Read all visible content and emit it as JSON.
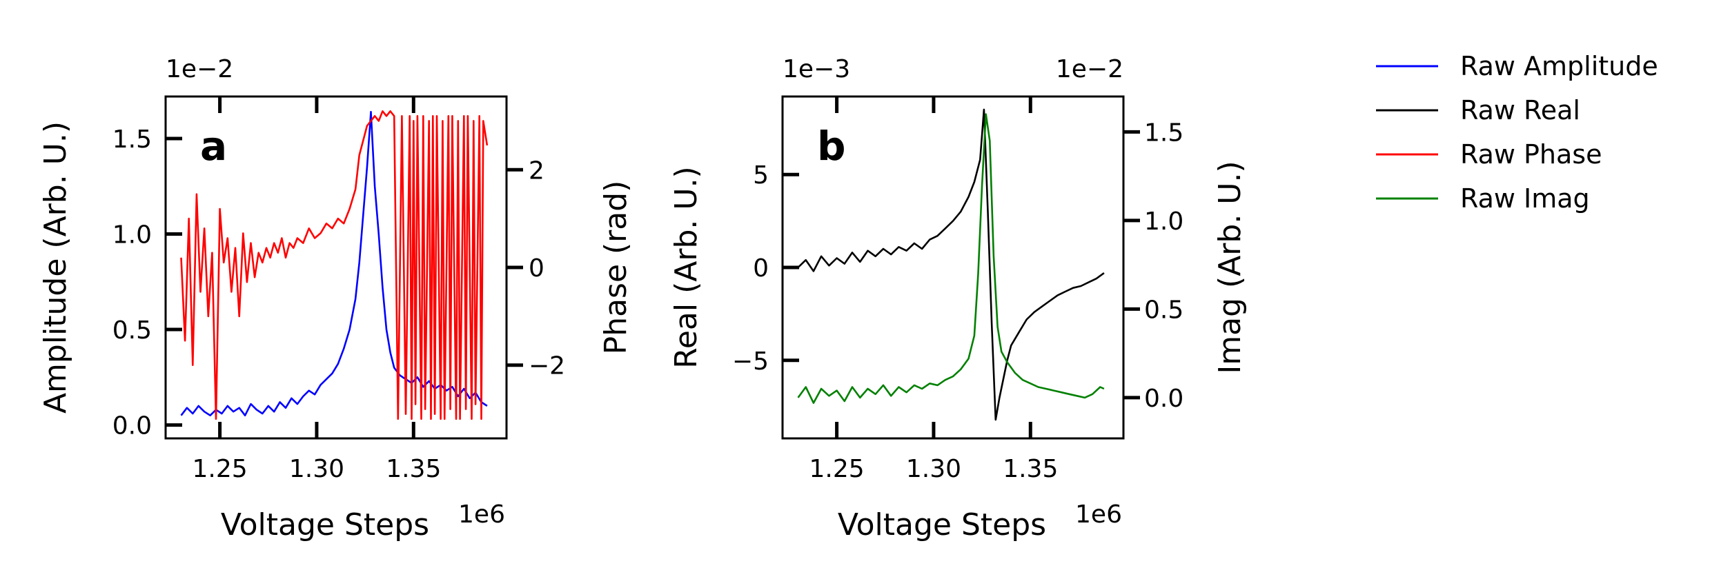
{
  "legend": {
    "placement": "right, outside plots",
    "entries": [
      {
        "label": "Raw Amplitude",
        "color": "#0000ff"
      },
      {
        "label": "Raw Real",
        "color": "#000000"
      },
      {
        "label": "Raw Phase",
        "color": "#ff0000"
      },
      {
        "label": "Raw Imag",
        "color": "#008000"
      }
    ]
  },
  "chart_data": [
    {
      "type": "line",
      "panel_label": "a",
      "xlabel": "Voltage Steps",
      "x_offset_text": "1e6",
      "xlim": [
        1.222,
        1.398
      ],
      "xticks": [
        1.25,
        1.3,
        1.35
      ],
      "xtick_labels": [
        "1.25",
        "1.30",
        "1.35"
      ],
      "grid": false,
      "left_axis": {
        "label": "Amplitude (Arb. U.)",
        "offset_text": "1e−2",
        "ylim": [
          -0.07,
          1.72
        ],
        "ticks": [
          0.0,
          0.5,
          1.0,
          1.5
        ],
        "tick_labels": [
          "0.0",
          "0.5",
          "1.0",
          "1.5"
        ]
      },
      "right_axis": {
        "label": "Phase (rad)",
        "ylim": [
          -3.5,
          3.5
        ],
        "ticks": [
          -2,
          0,
          2
        ],
        "tick_labels": [
          "−2",
          "0",
          "2"
        ]
      },
      "series": [
        {
          "name": "Raw Amplitude",
          "axis": "left",
          "color": "#0000ff",
          "x": [
            1.23,
            1.233,
            1.236,
            1.239,
            1.242,
            1.245,
            1.248,
            1.251,
            1.254,
            1.257,
            1.26,
            1.263,
            1.266,
            1.269,
            1.272,
            1.275,
            1.278,
            1.281,
            1.284,
            1.287,
            1.29,
            1.293,
            1.296,
            1.299,
            1.302,
            1.305,
            1.308,
            1.311,
            1.314,
            1.317,
            1.32,
            1.322,
            1.324,
            1.326,
            1.328,
            1.33,
            1.332,
            1.334,
            1.336,
            1.338,
            1.34,
            1.343,
            1.346,
            1.349,
            1.352,
            1.355,
            1.358,
            1.361,
            1.364,
            1.367,
            1.37,
            1.373,
            1.376,
            1.379,
            1.382,
            1.385,
            1.388
          ],
          "y": [
            0.05,
            0.09,
            0.06,
            0.1,
            0.07,
            0.05,
            0.08,
            0.06,
            0.1,
            0.07,
            0.09,
            0.05,
            0.11,
            0.08,
            0.06,
            0.1,
            0.07,
            0.12,
            0.09,
            0.14,
            0.11,
            0.15,
            0.18,
            0.16,
            0.21,
            0.24,
            0.27,
            0.32,
            0.4,
            0.5,
            0.66,
            0.85,
            1.1,
            1.35,
            1.64,
            1.25,
            1.0,
            0.72,
            0.5,
            0.38,
            0.3,
            0.26,
            0.24,
            0.22,
            0.25,
            0.2,
            0.23,
            0.19,
            0.21,
            0.18,
            0.2,
            0.15,
            0.19,
            0.14,
            0.17,
            0.12,
            0.1
          ]
        },
        {
          "name": "Raw Phase",
          "axis": "right",
          "color": "#ff0000",
          "x": [
            1.23,
            1.232,
            1.234,
            1.236,
            1.238,
            1.24,
            1.242,
            1.244,
            1.246,
            1.248,
            1.25,
            1.252,
            1.254,
            1.256,
            1.258,
            1.26,
            1.262,
            1.264,
            1.266,
            1.268,
            1.27,
            1.272,
            1.274,
            1.276,
            1.278,
            1.28,
            1.282,
            1.284,
            1.286,
            1.288,
            1.29,
            1.293,
            1.296,
            1.299,
            1.302,
            1.305,
            1.308,
            1.311,
            1.314,
            1.317,
            1.32,
            1.322,
            1.324,
            1.326,
            1.328,
            1.33,
            1.332,
            1.334,
            1.336,
            1.338,
            1.34,
            1.342,
            1.344,
            1.346,
            1.348,
            1.349,
            1.35,
            1.351,
            1.352,
            1.354,
            1.355,
            1.356,
            1.358,
            1.359,
            1.36,
            1.361,
            1.362,
            1.364,
            1.365,
            1.366,
            1.368,
            1.369,
            1.37,
            1.372,
            1.373,
            1.374,
            1.376,
            1.377,
            1.378,
            1.38,
            1.381,
            1.382,
            1.384,
            1.385,
            1.386,
            1.388
          ],
          "y": [
            0.2,
            -1.5,
            1.0,
            -2.0,
            1.5,
            -0.5,
            0.8,
            -1.0,
            0.3,
            -3.1,
            1.2,
            0.1,
            0.6,
            -0.5,
            0.4,
            -1.0,
            0.7,
            -0.3,
            0.5,
            -0.2,
            0.3,
            0.1,
            0.4,
            0.2,
            0.5,
            0.3,
            0.6,
            0.2,
            0.5,
            0.4,
            0.6,
            0.5,
            0.8,
            0.6,
            0.7,
            0.9,
            0.8,
            1.0,
            0.9,
            1.2,
            1.6,
            2.3,
            2.6,
            2.9,
            3.0,
            3.1,
            3.0,
            3.2,
            3.1,
            3.2,
            3.1,
            -3.1,
            3.1,
            -3.0,
            3.1,
            -3.1,
            3.0,
            -2.8,
            3.1,
            -3.1,
            3.1,
            -2.9,
            3.0,
            -3.1,
            3.1,
            -3.0,
            3.1,
            -3.1,
            3.0,
            -3.1,
            3.1,
            -2.9,
            3.1,
            -3.1,
            3.0,
            -3.1,
            3.1,
            -2.9,
            3.1,
            -3.1,
            3.0,
            -2.8,
            3.1,
            -3.1,
            3.0,
            2.5
          ]
        }
      ]
    },
    {
      "type": "line",
      "panel_label": "b",
      "xlabel": "Voltage Steps",
      "x_offset_text": "1e6",
      "xlim": [
        1.222,
        1.398
      ],
      "xticks": [
        1.25,
        1.3,
        1.35
      ],
      "xtick_labels": [
        "1.25",
        "1.30",
        "1.35"
      ],
      "grid": false,
      "left_axis": {
        "label": "Real (Arb. U.)",
        "offset_text": "1e−3",
        "ylim": [
          -9.2,
          9.2
        ],
        "ticks": [
          -5,
          0,
          5
        ],
        "tick_labels": [
          "−5",
          "0",
          "5"
        ]
      },
      "right_axis": {
        "label": "Imag (Arb. U.)",
        "offset_text": "1e−2",
        "ylim": [
          -0.23,
          1.7
        ],
        "ticks": [
          0.0,
          0.5,
          1.0,
          1.5
        ],
        "tick_labels": [
          "0.0",
          "0.5",
          "1.0",
          "1.5"
        ]
      },
      "series": [
        {
          "name": "Raw Real",
          "axis": "left",
          "color": "#000000",
          "x": [
            1.23,
            1.234,
            1.238,
            1.242,
            1.246,
            1.25,
            1.254,
            1.258,
            1.262,
            1.266,
            1.27,
            1.274,
            1.278,
            1.282,
            1.286,
            1.29,
            1.294,
            1.298,
            1.302,
            1.306,
            1.31,
            1.314,
            1.318,
            1.321,
            1.324,
            1.326,
            1.328,
            1.33,
            1.332,
            1.334,
            1.336,
            1.338,
            1.34,
            1.344,
            1.348,
            1.352,
            1.356,
            1.36,
            1.364,
            1.368,
            1.372,
            1.376,
            1.38,
            1.384,
            1.388
          ],
          "y": [
            0.0,
            0.4,
            -0.2,
            0.6,
            0.1,
            0.5,
            0.2,
            0.8,
            0.3,
            0.9,
            0.6,
            1.0,
            0.7,
            1.1,
            0.9,
            1.3,
            1.0,
            1.5,
            1.7,
            2.1,
            2.5,
            3.0,
            3.8,
            4.6,
            5.8,
            8.5,
            3.0,
            -3.0,
            -8.2,
            -7.0,
            -6.0,
            -5.0,
            -4.2,
            -3.5,
            -2.8,
            -2.4,
            -2.1,
            -1.8,
            -1.5,
            -1.3,
            -1.1,
            -1.0,
            -0.8,
            -0.6,
            -0.3
          ]
        },
        {
          "name": "Raw Imag",
          "axis": "right",
          "color": "#008000",
          "x": [
            1.23,
            1.234,
            1.238,
            1.242,
            1.246,
            1.25,
            1.254,
            1.258,
            1.262,
            1.266,
            1.27,
            1.274,
            1.278,
            1.282,
            1.286,
            1.29,
            1.294,
            1.298,
            1.302,
            1.306,
            1.31,
            1.314,
            1.318,
            1.321,
            1.323,
            1.325,
            1.327,
            1.329,
            1.331,
            1.333,
            1.335,
            1.338,
            1.342,
            1.346,
            1.35,
            1.354,
            1.358,
            1.362,
            1.366,
            1.37,
            1.374,
            1.378,
            1.382,
            1.386,
            1.388
          ],
          "y": [
            0.0,
            0.06,
            -0.03,
            0.05,
            0.01,
            0.04,
            -0.02,
            0.06,
            0.0,
            0.05,
            0.02,
            0.07,
            0.01,
            0.06,
            0.03,
            0.07,
            0.05,
            0.08,
            0.07,
            0.1,
            0.12,
            0.16,
            0.22,
            0.35,
            0.7,
            1.2,
            1.6,
            1.45,
            0.8,
            0.4,
            0.26,
            0.2,
            0.14,
            0.1,
            0.08,
            0.06,
            0.05,
            0.04,
            0.03,
            0.02,
            0.01,
            0.0,
            0.02,
            0.06,
            0.05
          ]
        }
      ]
    }
  ]
}
